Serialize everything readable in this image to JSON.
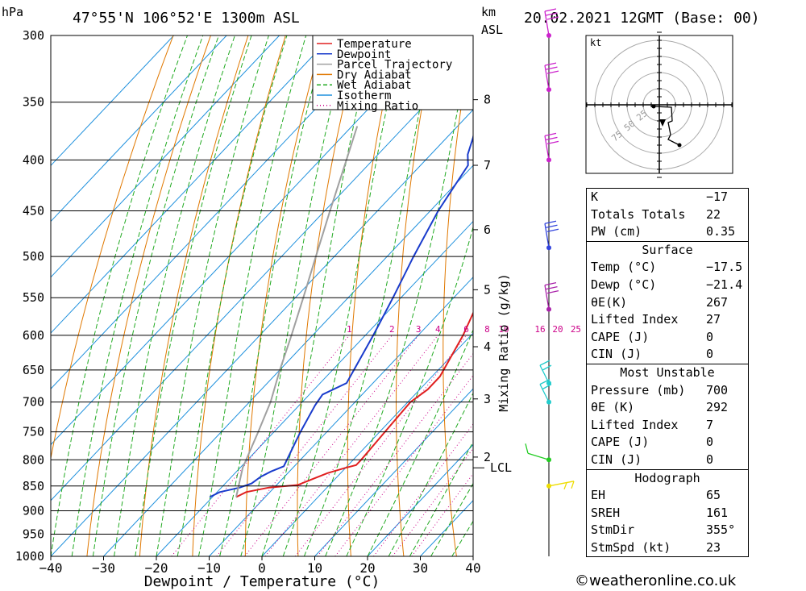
{
  "header": {
    "location": "47°55'N  106°52'E  1300m  ASL",
    "datetime": "20.02.2021  12GMT  (Base: 00)",
    "pressure_unit": "hPa",
    "km_unit": "km",
    "asl": "ASL"
  },
  "chart_data": {
    "type": "line",
    "xlabel": "Dewpoint / Temperature (°C)",
    "ylabel": "hPa",
    "y2label": "Mixing Ratio (g/kg)",
    "x_ticks": [
      -40,
      -30,
      -20,
      -10,
      0,
      10,
      20,
      30,
      40
    ],
    "x_tick_labels": [
      "−40",
      "−30",
      "−20",
      "−10",
      "0",
      "10",
      "20",
      "30",
      "40"
    ],
    "xlim": [
      -40,
      40
    ],
    "ylim": [
      1000,
      300
    ],
    "y_scale": "log",
    "p_ticks": [
      300,
      350,
      400,
      450,
      500,
      550,
      600,
      650,
      700,
      750,
      800,
      850,
      900,
      950,
      1000
    ],
    "km_ticks": [
      {
        "label": "8",
        "p": 348
      },
      {
        "label": "7",
        "p": 405
      },
      {
        "label": "6",
        "p": 470
      },
      {
        "label": "5",
        "p": 540
      },
      {
        "label": "4",
        "p": 616
      },
      {
        "label": "3",
        "p": 695
      },
      {
        "label": "2",
        "p": 795
      }
    ],
    "lcl": {
      "label": "LCL",
      "p": 815
    },
    "mixing_ratio_labels": [
      "1",
      "2",
      "3",
      "4",
      "6",
      "8",
      "10",
      "16",
      "20",
      "25"
    ],
    "mixing_ratio_values": [
      1,
      2,
      3,
      4,
      6,
      8,
      10,
      16,
      20,
      25
    ],
    "legend": {
      "placement": "top-right",
      "entries": [
        {
          "name": "Temperature",
          "color": "#e02020",
          "style": "solid"
        },
        {
          "name": "Dewpoint",
          "color": "#1a3ccc",
          "style": "solid"
        },
        {
          "name": "Parcel Trajectory",
          "color": "#a0a0a0",
          "style": "solid"
        },
        {
          "name": "Dry Adiabat",
          "color": "#e07800",
          "style": "solid"
        },
        {
          "name": "Wet Adiabat",
          "color": "#22aa22",
          "style": "dashed"
        },
        {
          "name": "Isotherm",
          "color": "#1e90dd",
          "style": "solid"
        },
        {
          "name": "Mixing Ratio",
          "color": "#cc0088",
          "style": "dotted"
        }
      ]
    },
    "series": [
      {
        "name": "Temperature",
        "color": "#e02020",
        "points": [
          {
            "p": 872,
            "t": -15.5
          },
          {
            "p": 862,
            "t": -14.5
          },
          {
            "p": 853,
            "t": -11
          },
          {
            "p": 848,
            "t": -6
          },
          {
            "p": 838,
            "t": -4.5
          },
          {
            "p": 825,
            "t": -2.5
          },
          {
            "p": 815,
            "t": 0
          },
          {
            "p": 810,
            "t": 1.5
          },
          {
            "p": 800,
            "t": 1.5
          },
          {
            "p": 750,
            "t": 1
          },
          {
            "p": 700,
            "t": 0.5
          },
          {
            "p": 680,
            "t": 1.5
          },
          {
            "p": 660,
            "t": 1.5
          },
          {
            "p": 600,
            "t": -1.5
          },
          {
            "p": 550,
            "t": -5
          },
          {
            "p": 500,
            "t": -10
          },
          {
            "p": 450,
            "t": -15.5
          },
          {
            "p": 400,
            "t": -22
          },
          {
            "p": 350,
            "t": -27.5
          },
          {
            "p": 300,
            "t": -34
          }
        ]
      },
      {
        "name": "Dewpoint",
        "color": "#1a3ccc",
        "points": [
          {
            "p": 872,
            "t": -20.5
          },
          {
            "p": 862,
            "t": -19.5
          },
          {
            "p": 853,
            "t": -16.5
          },
          {
            "p": 845,
            "t": -15
          },
          {
            "p": 832,
            "t": -14.5
          },
          {
            "p": 822,
            "t": -13.5
          },
          {
            "p": 812,
            "t": -12
          },
          {
            "p": 750,
            "t": -15
          },
          {
            "p": 705,
            "t": -17
          },
          {
            "p": 688,
            "t": -17.5
          },
          {
            "p": 670,
            "t": -15
          },
          {
            "p": 600,
            "t": -18.5
          },
          {
            "p": 550,
            "t": -21.5
          },
          {
            "p": 500,
            "t": -25
          },
          {
            "p": 450,
            "t": -28.5
          },
          {
            "p": 405,
            "t": -31
          },
          {
            "p": 395,
            "t": -33
          },
          {
            "p": 380,
            "t": -35
          },
          {
            "p": 350,
            "t": -40
          },
          {
            "p": 335,
            "t": -42
          },
          {
            "p": 300,
            "t": -45
          }
        ]
      },
      {
        "name": "Parcel Trajectory",
        "color": "#a0a0a0",
        "points": [
          {
            "p": 872,
            "t": -15.5
          },
          {
            "p": 815,
            "t": -19.5
          },
          {
            "p": 750,
            "t": -23
          },
          {
            "p": 700,
            "t": -26
          },
          {
            "p": 650,
            "t": -30
          },
          {
            "p": 600,
            "t": -34
          },
          {
            "p": 550,
            "t": -38.5
          },
          {
            "p": 500,
            "t": -43.5
          },
          {
            "p": 450,
            "t": -49
          },
          {
            "p": 400,
            "t": -55
          },
          {
            "p": 370,
            "t": -59
          }
        ]
      }
    ],
    "wind_barbs": [
      {
        "p": 300,
        "color": "#cc22cc"
      },
      {
        "p": 340,
        "color": "#cc22cc"
      },
      {
        "p": 400,
        "color": "#cc22cc"
      },
      {
        "p": 490,
        "color": "#3344dd"
      },
      {
        "p": 565,
        "color": "#aa22aa"
      },
      {
        "p": 670,
        "color": "#22cccc"
      },
      {
        "p": 700,
        "color": "#22cccc"
      },
      {
        "p": 800,
        "color": "#22cc22"
      },
      {
        "p": 850,
        "color": "#eedd00"
      }
    ]
  },
  "hodograph": {
    "unit": "kt",
    "ring_labels": [
      "25",
      "50",
      "75"
    ]
  },
  "indices": {
    "general": [
      {
        "label": "K",
        "value": "−17"
      },
      {
        "label": "Totals Totals",
        "value": "22"
      },
      {
        "label": "PW (cm)",
        "value": "0.35"
      }
    ],
    "surface": {
      "title": "Surface",
      "rows": [
        {
          "label": "Temp (°C)",
          "value": "−17.5"
        },
        {
          "label": "Dewp (°C)",
          "value": "−21.4"
        },
        {
          "label": "θE(K)",
          "value": "267"
        },
        {
          "label": "Lifted Index",
          "value": "27"
        },
        {
          "label": "CAPE (J)",
          "value": "0"
        },
        {
          "label": "CIN (J)",
          "value": "0"
        }
      ]
    },
    "most_unstable": {
      "title": "Most Unstable",
      "rows": [
        {
          "label": "Pressure (mb)",
          "value": "700"
        },
        {
          "label": "θE (K)",
          "value": "292"
        },
        {
          "label": "Lifted Index",
          "value": "7"
        },
        {
          "label": "CAPE (J)",
          "value": "0"
        },
        {
          "label": "CIN (J)",
          "value": "0"
        }
      ]
    },
    "hodograph_box": {
      "title": "Hodograph",
      "rows": [
        {
          "label": "EH",
          "value": "65"
        },
        {
          "label": "SREH",
          "value": "161"
        },
        {
          "label": "StmDir",
          "value": "355°"
        },
        {
          "label": "StmSpd (kt)",
          "value": "23"
        }
      ]
    }
  },
  "footer": {
    "copyright": "©weatheronline.co.uk"
  }
}
